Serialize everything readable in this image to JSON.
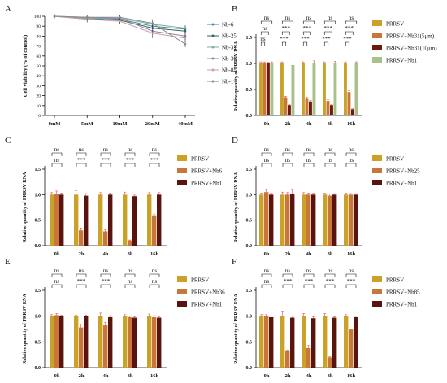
{
  "colors": {
    "prrsv": "#c9a227",
    "nb_low": "#c8763a",
    "nb_high": "#6b1a10",
    "nb1_light": "#a9c08a",
    "nb1_dark": "#5a1410"
  },
  "chart_data": [
    {
      "panel": "A",
      "type": "line",
      "ylabel": "Cell viability (% of control)",
      "x": [
        "0mM",
        "5mM",
        "10mM",
        "20mM",
        "40mM"
      ],
      "ylim": [
        0,
        100
      ],
      "yticks": [
        0,
        10,
        20,
        30,
        40,
        50,
        60,
        70,
        80,
        90,
        100
      ],
      "legend_position": "right",
      "series": [
        {
          "name": "Nb-6",
          "color": "#4a86a8",
          "values": [
            100,
            98,
            97,
            90,
            87
          ],
          "err": [
            2,
            3,
            3,
            4,
            3
          ]
        },
        {
          "name": "Nb-25",
          "color": "#2e6b5a",
          "values": [
            100,
            97,
            96,
            88,
            85
          ],
          "err": [
            2,
            3,
            3,
            5,
            3
          ]
        },
        {
          "name": "Nb-31",
          "color": "#7fb09a",
          "values": [
            100,
            98,
            98,
            92,
            88
          ],
          "err": [
            2,
            2,
            3,
            3,
            3
          ]
        },
        {
          "name": "Nb-36",
          "color": "#9c7bb0",
          "values": [
            100,
            99,
            98,
            85,
            80
          ],
          "err": [
            2,
            2,
            2,
            4,
            4
          ]
        },
        {
          "name": "Nb-85",
          "color": "#c9a0a0",
          "values": [
            100,
            97,
            95,
            83,
            78
          ],
          "err": [
            2,
            3,
            3,
            5,
            4
          ]
        },
        {
          "name": "Nb-1",
          "color": "#8a8a8a",
          "values": [
            100,
            99,
            99,
            93,
            72
          ],
          "err": [
            2,
            2,
            2,
            4,
            3
          ]
        }
      ]
    },
    {
      "panel": "B",
      "type": "bar",
      "ylabel": "Relative quantity of PRRSV RNA",
      "categories": [
        "0h",
        "2h",
        "4h",
        "8h",
        "16h"
      ],
      "ylim": [
        0,
        1.5
      ],
      "yticks": [
        "0.0",
        "0.5",
        "1.0",
        "1.5"
      ],
      "series": [
        {
          "name": "PRRSV",
          "color": "#c9a227",
          "values": [
            1.0,
            1.0,
            1.0,
            1.0,
            1.0
          ],
          "err": [
            0.03,
            0.03,
            0.03,
            0.03,
            0.03
          ]
        },
        {
          "name": "PRRSV+Nb31(5μm)",
          "color": "#c8763a",
          "values": [
            1.0,
            0.35,
            0.32,
            0.28,
            0.45
          ],
          "err": [
            0.03,
            0.02,
            0.03,
            0.02,
            0.03
          ]
        },
        {
          "name": "PRRSV+Nb31(10μm)",
          "color": "#6b1a10",
          "values": [
            1.0,
            0.2,
            0.27,
            0.2,
            0.12
          ],
          "err": [
            0.02,
            0.01,
            0.02,
            0.01,
            0.01
          ]
        },
        {
          "name": "PRRSV+Nb1",
          "color": "#a9c08a",
          "values": [
            1.0,
            0.97,
            1.0,
            1.0,
            1.0
          ],
          "err": [
            0.03,
            0.04,
            0.05,
            0.04,
            0.03
          ]
        }
      ],
      "sig_top": [
        "ns",
        "ns",
        "ns",
        "ns",
        "ns"
      ],
      "sig_mid": [
        "ns",
        "***",
        "***",
        "***",
        "***"
      ],
      "sig_low": [
        "ns",
        "***",
        "***",
        "***",
        "***"
      ]
    },
    {
      "panel": "C",
      "type": "bar",
      "ylabel": "Relative quantity of PRRSV RNA",
      "categories": [
        "0h",
        "2h",
        "4h",
        "8h",
        "16h"
      ],
      "ylim": [
        0,
        1.5
      ],
      "yticks": [
        "0.0",
        "0.5",
        "1.0",
        "1.5"
      ],
      "series": [
        {
          "name": "PRRSV",
          "color": "#c9a227",
          "values": [
            1.0,
            1.0,
            1.0,
            1.0,
            1.0
          ],
          "err": [
            0.04,
            0.08,
            0.04,
            0.05,
            0.04
          ]
        },
        {
          "name": "PRRSV+Nb6",
          "color": "#c8763a",
          "values": [
            1.02,
            0.3,
            0.28,
            0.1,
            0.58
          ],
          "err": [
            0.05,
            0.03,
            0.03,
            0.01,
            0.04
          ]
        },
        {
          "name": "PRRSV+Nb1",
          "color": "#5a1410",
          "values": [
            1.0,
            0.98,
            1.0,
            0.97,
            1.0
          ],
          "err": [
            0.03,
            0.04,
            0.03,
            0.02,
            0.04
          ]
        }
      ],
      "sig_top": [
        "ns",
        "ns",
        "ns",
        "ns",
        "ns"
      ],
      "sig_mid": [
        "ns",
        "***",
        "***",
        "***",
        "***"
      ]
    },
    {
      "panel": "D",
      "type": "bar",
      "ylabel": "Relative quantity of PRRSV RNA",
      "categories": [
        "0h",
        "2h",
        "4h",
        "8h",
        "16h"
      ],
      "ylim": [
        0,
        1.5
      ],
      "yticks": [
        "0.0",
        "0.5",
        "1.0",
        "1.5"
      ],
      "series": [
        {
          "name": "PRRSV",
          "color": "#c9a227",
          "values": [
            1.0,
            1.0,
            1.0,
            1.0,
            1.0
          ],
          "err": [
            0.03,
            0.05,
            0.04,
            0.03,
            0.03
          ]
        },
        {
          "name": "PRRSV+Nb25",
          "color": "#c8763a",
          "values": [
            1.05,
            1.0,
            1.0,
            0.98,
            1.0
          ],
          "err": [
            0.05,
            0.04,
            0.03,
            0.03,
            0.02
          ]
        },
        {
          "name": "PRRSV+Nb1",
          "color": "#5a1410",
          "values": [
            1.0,
            1.02,
            1.0,
            1.0,
            1.0
          ],
          "err": [
            0.03,
            0.08,
            0.03,
            0.02,
            0.02
          ]
        }
      ],
      "sig_top": [
        "ns",
        "ns",
        "ns",
        "ns",
        "ns"
      ],
      "sig_mid": [
        "ns",
        "ns",
        "ns",
        "ns",
        "ns"
      ]
    },
    {
      "panel": "E",
      "type": "bar",
      "ylabel": "Relative quantity of PRRSV RNA",
      "categories": [
        "0h",
        "2h",
        "4h",
        "8h",
        "16h"
      ],
      "ylim": [
        0,
        1.5
      ],
      "yticks": [
        "0.0",
        "0.5",
        "1.0",
        "1.5"
      ],
      "series": [
        {
          "name": "PRRSV",
          "color": "#c9a227",
          "values": [
            1.0,
            1.0,
            1.0,
            1.0,
            1.0
          ],
          "err": [
            0.03,
            0.02,
            0.06,
            0.03,
            0.04
          ]
        },
        {
          "name": "PRRSV+Nb36",
          "color": "#c8763a",
          "values": [
            1.02,
            0.78,
            0.82,
            0.98,
            0.98
          ],
          "err": [
            0.03,
            0.06,
            0.06,
            0.02,
            0.03
          ]
        },
        {
          "name": "PRRSV+Nb1",
          "color": "#5a1410",
          "values": [
            1.0,
            1.0,
            0.98,
            0.97,
            0.97
          ],
          "err": [
            0.02,
            0.02,
            0.03,
            0.02,
            0.02
          ]
        }
      ],
      "sig_top": [
        "ns",
        "ns",
        "ns",
        "ns",
        "ns"
      ],
      "sig_mid": [
        "ns",
        "***",
        "***",
        "ns",
        "ns"
      ]
    },
    {
      "panel": "F",
      "type": "bar",
      "ylabel": "Relative quantity of PRRSV RNA",
      "categories": [
        "0h",
        "2h",
        "4h",
        "8h",
        "16h"
      ],
      "ylim": [
        0,
        1.5
      ],
      "yticks": [
        "0.0",
        "0.5",
        "1.0",
        "1.5"
      ],
      "series": [
        {
          "name": "PRRSV",
          "color": "#c9a227",
          "values": [
            1.0,
            1.0,
            1.0,
            1.0,
            1.0
          ],
          "err": [
            0.03,
            0.08,
            0.05,
            0.05,
            0.03
          ]
        },
        {
          "name": "PRRSV+Nb85",
          "color": "#c8763a",
          "values": [
            1.0,
            0.32,
            0.38,
            0.2,
            0.74
          ],
          "err": [
            0.03,
            0.01,
            0.05,
            0.01,
            0.01
          ]
        },
        {
          "name": "PRRSV+Nb1",
          "color": "#5a1410",
          "values": [
            0.98,
            0.97,
            0.96,
            0.97,
            0.98
          ],
          "err": [
            0.02,
            0.03,
            0.03,
            0.02,
            0.02
          ]
        }
      ],
      "sig_top": [
        "ns",
        "ns",
        "ns",
        "ns",
        "ns"
      ],
      "sig_mid": [
        "ns",
        "***",
        "***",
        "***",
        "***"
      ]
    }
  ]
}
